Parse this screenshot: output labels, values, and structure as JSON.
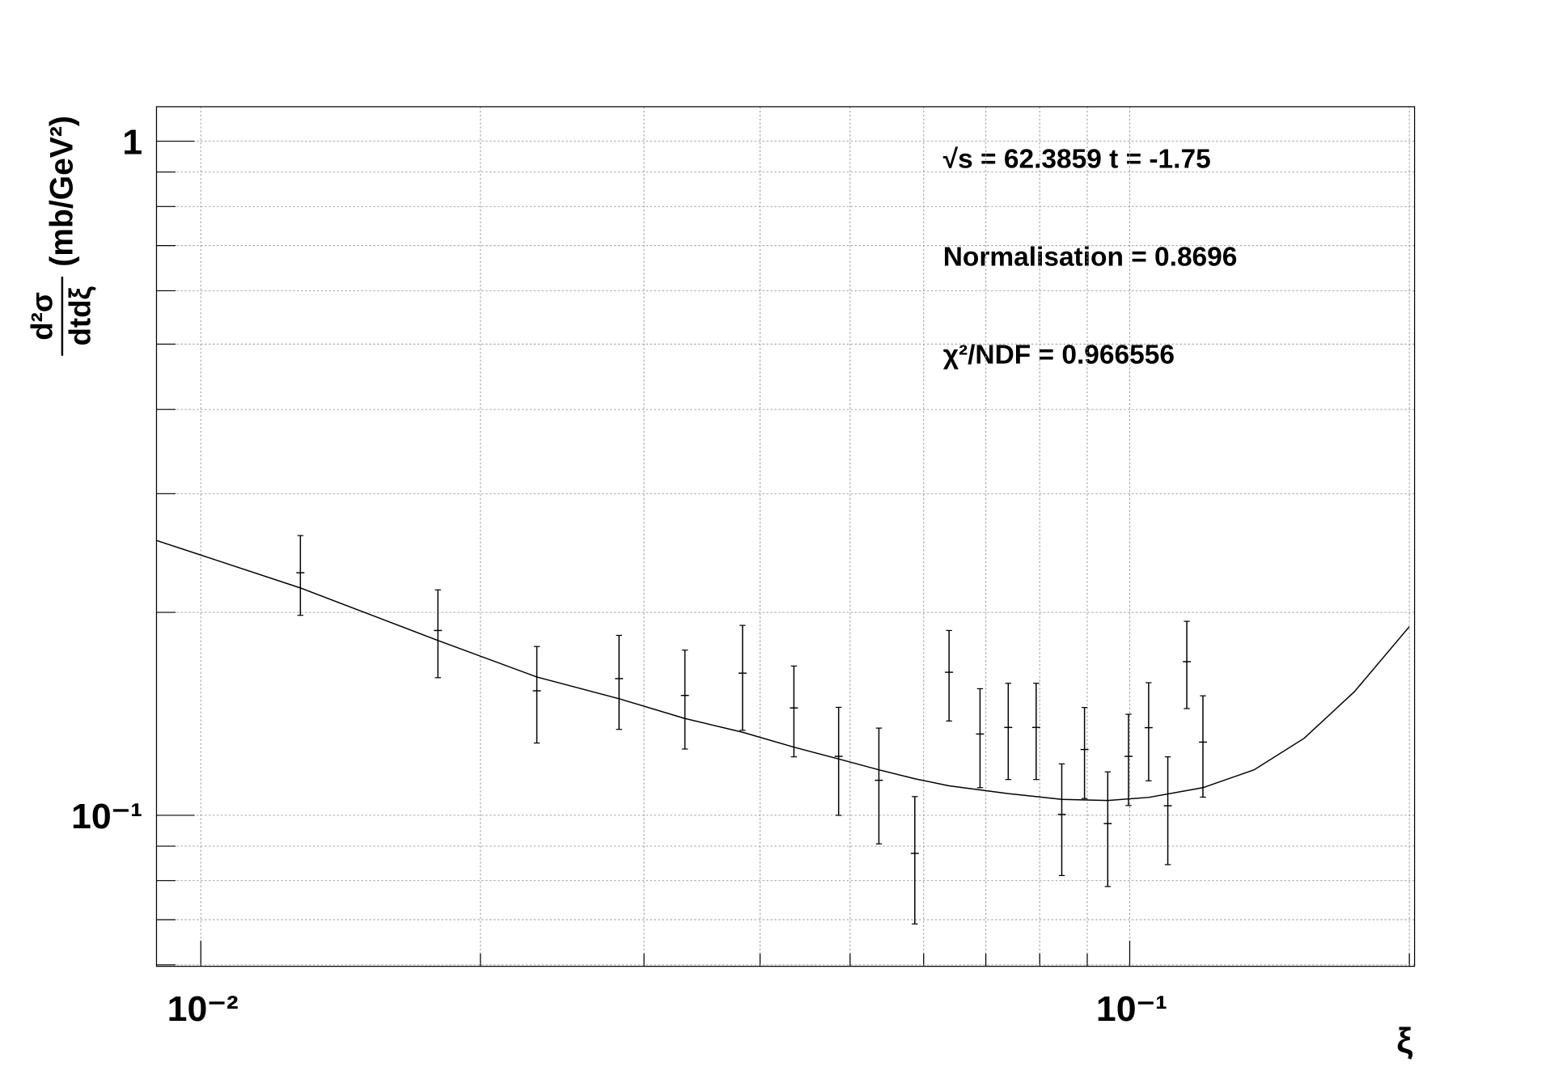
{
  "chart_data": {
    "type": "errorbar",
    "annotations": [
      "√s = 62.3859 t = -1.75",
      "Normalisation = 0.8696",
      "χ²/NDF = 0.966556"
    ],
    "xlabel": "ξ",
    "ylabel_numerator": "d²σ",
    "ylabel_denominator": "dtdξ",
    "ylabel_unit": "(mb/GeV²)",
    "xlog": true,
    "ylog": true,
    "grid": true,
    "color": "#000000",
    "xlim": [
      0.00896,
      0.2026
    ],
    "ylim": [
      0.0597,
      1.125
    ],
    "xticks": [
      {
        "value": 0.01,
        "label": "10⁻²"
      },
      {
        "value": 0.1,
        "label": "10⁻¹"
      }
    ],
    "xminorticks": [
      0.02,
      0.03,
      0.04,
      0.05,
      0.06,
      0.07,
      0.08,
      0.09,
      0.2
    ],
    "yticks": [
      {
        "value": 0.1,
        "label": "10⁻¹"
      },
      1
    ],
    "yminorticks": [
      0.06,
      0.07,
      0.08,
      0.09,
      0.2,
      0.3,
      0.4,
      0.5,
      0.6,
      0.7,
      0.8,
      0.9
    ],
    "x": [
      0.0128,
      0.018,
      0.023,
      0.0282,
      0.0332,
      0.0383,
      0.0435,
      0.0486,
      0.0537,
      0.0587,
      0.0639,
      0.069,
      0.074,
      0.0793,
      0.0845,
      0.0894,
      0.0947,
      0.0997,
      0.1048,
      0.1099,
      0.1152,
      0.1199
    ],
    "values": [
      0.229,
      0.188,
      0.153,
      0.1595,
      0.1506,
      0.1625,
      0.1443,
      0.1223,
      0.1127,
      0.0878,
      0.163,
      0.132,
      0.135,
      0.135,
      0.1003,
      0.1252,
      0.0972,
      0.1223,
      0.1349,
      0.1033,
      0.169,
      0.1284
    ],
    "errors": [
      0.031,
      0.028,
      0.025,
      0.0254,
      0.0252,
      0.0288,
      0.0222,
      0.0223,
      0.022,
      0.0188,
      0.025,
      0.0221,
      0.022,
      0.022,
      0.0189,
      0.0193,
      0.0188,
      0.0189,
      0.0224,
      0.0188,
      0.025,
      0.022
    ],
    "fit_x": [
      0.00896,
      0.0128,
      0.018,
      0.023,
      0.0282,
      0.0332,
      0.0383,
      0.0435,
      0.0486,
      0.0537,
      0.0587,
      0.0639,
      0.074,
      0.0845,
      0.0947,
      0.1048,
      0.1199,
      0.1361,
      0.1541,
      0.1745,
      0.2
    ],
    "fit_values": [
      0.2557,
      0.2174,
      0.1817,
      0.1604,
      0.1489,
      0.1392,
      0.1328,
      0.1262,
      0.1212,
      0.1168,
      0.1133,
      0.1106,
      0.1077,
      0.1056,
      0.1052,
      0.1063,
      0.1099,
      0.1168,
      0.1301,
      0.1525,
      0.1905
    ]
  }
}
